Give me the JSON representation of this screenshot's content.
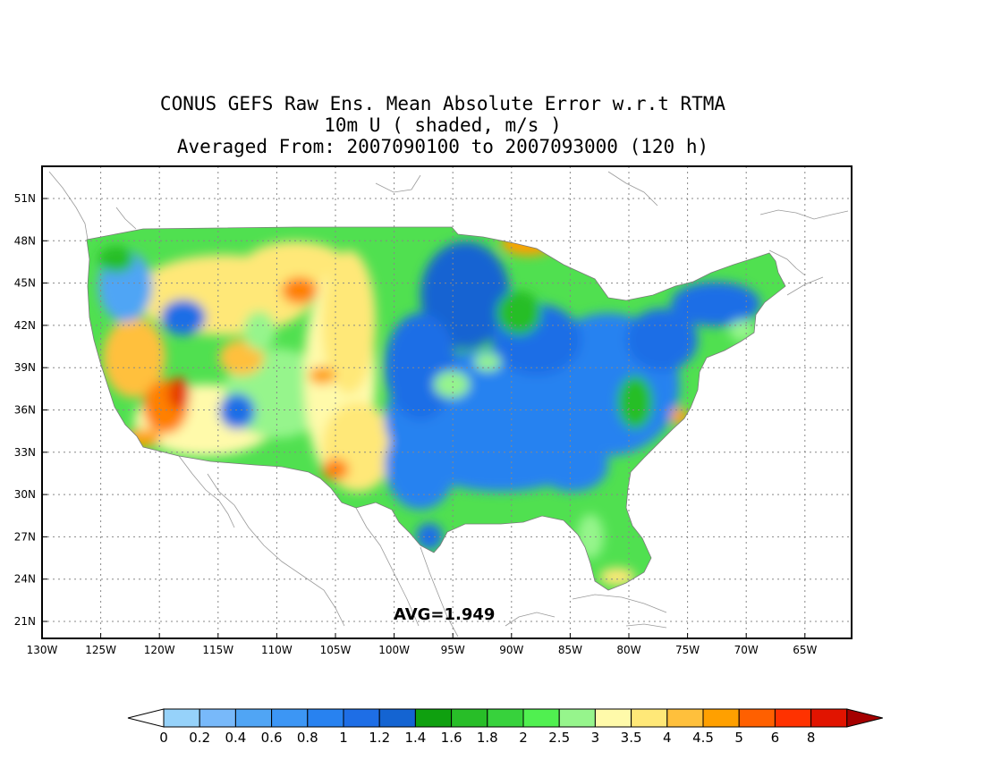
{
  "title": {
    "line1": "CONUS GEFS Raw Ens. Mean Absolute Error w.r.t RTMA",
    "line2": "10m U ( shaded, m/s )",
    "line3": "Averaged From: 2007090100 to 2007093000 (120 h)"
  },
  "avg_label": "AVG=1.949",
  "lat_labels": [
    "51N",
    "48N",
    "45N",
    "42N",
    "39N",
    "36N",
    "33N",
    "30N",
    "27N",
    "24N",
    "21N"
  ],
  "lon_labels": [
    "130W",
    "125W",
    "120W",
    "115W",
    "110W",
    "105W",
    "100W",
    "95W",
    "90W",
    "85W",
    "80W",
    "75W",
    "70W",
    "65W"
  ],
  "colorbar": {
    "labels": [
      "0",
      "0.2",
      "0.4",
      "0.6",
      "0.8",
      "1",
      "1.2",
      "1.4",
      "1.6",
      "1.8",
      "2",
      "2.5",
      "3",
      "3.5",
      "4",
      "4.5",
      "5",
      "6",
      "8"
    ],
    "colors": [
      "#ffffff",
      "#96d2fa",
      "#78b9fa",
      "#50a5f5",
      "#3c96f5",
      "#2882f0",
      "#1e6ee6",
      "#1464d2",
      "#0fa00f",
      "#28be28",
      "#37d23c",
      "#50f050",
      "#96f58c",
      "#fffaaa",
      "#ffe878",
      "#ffc03c",
      "#ffa000",
      "#ff6000",
      "#ff3200",
      "#e11400",
      "#a50000"
    ]
  },
  "chart_data": {
    "type": "heatmap",
    "variable": "10m U",
    "units": "m/s",
    "lat_range": [
      "21N",
      "51N"
    ],
    "lon_range": [
      "130W",
      "65W"
    ],
    "average": 1.949
  }
}
